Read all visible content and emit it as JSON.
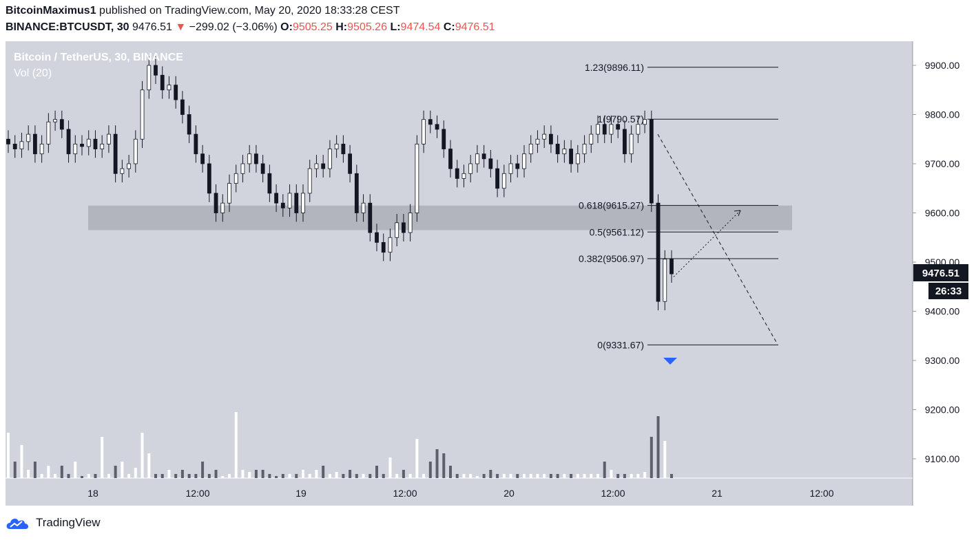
{
  "header": {
    "author": "BitcoinMaximus1",
    "published": "published on TradingView.com, May 20, 2020 18:33:28 CEST",
    "symbol": "BINANCE:BTCUSDT, 30",
    "last": "9476.51",
    "change": "−299.02 (−3.06%)",
    "o_label": "O:",
    "o": "9505.25",
    "h_label": "H:",
    "h": "9505.26",
    "l_label": "L:",
    "l": "9474.54",
    "c_label": "C:",
    "c": "9476.51"
  },
  "legend": {
    "title": "Bitcoin / TetherUS, 30, BINANCE",
    "volume": "Vol (20)"
  },
  "price_tag": "9476.51",
  "countdown": "26:33",
  "footer": {
    "brand": "TradingView"
  },
  "colors": {
    "plot_bg": "#d1d4dc",
    "zone": "#b2b5be",
    "up_body": "#ffffff",
    "down_body": "#131722",
    "price_tag": "#131722",
    "marker": "#2962ff"
  },
  "chart_data": {
    "type": "candlestick",
    "title": "Bitcoin / TetherUS, 30, BINANCE",
    "ylim": [
      9050,
      9940
    ],
    "yticks": [
      "9900.00",
      "9800.00",
      "9700.00",
      "9600.00",
      "9500.00",
      "9400.00",
      "9300.00",
      "9200.00",
      "9100.00"
    ],
    "xticks": [
      "18",
      "12:00",
      "19",
      "12:00",
      "20",
      "12:00",
      "21",
      "12:00"
    ],
    "fibonacci": [
      {
        "label": "1.23(9896.11)",
        "value": 9896.11
      },
      {
        "label": "1(9790.57)",
        "value": 9790.57
      },
      {
        "label": "0.618(9615.27)",
        "value": 9615.27
      },
      {
        "label": "0.5(9561.12)",
        "value": 9561.12
      },
      {
        "label": "0.382(9506.97)",
        "value": 9506.97
      },
      {
        "label": "0(9331.67)",
        "value": 9331.67
      }
    ],
    "support_zone": [
      9565,
      9615
    ],
    "close_path": [
      9740,
      9730,
      9745,
      9760,
      9720,
      9740,
      9785,
      9790,
      9770,
      9720,
      9740,
      9735,
      9750,
      9730,
      9740,
      9760,
      9680,
      9690,
      9700,
      9750,
      9850,
      9900,
      9880,
      9850,
      9860,
      9830,
      9800,
      9760,
      9720,
      9700,
      9640,
      9600,
      9620,
      9660,
      9680,
      9700,
      9720,
      9700,
      9680,
      9640,
      9620,
      9610,
      9640,
      9600,
      9640,
      9690,
      9700,
      9690,
      9730,
      9740,
      9720,
      9680,
      9600,
      9620,
      9560,
      9540,
      9520,
      9550,
      9580,
      9560,
      9600,
      9740,
      9790,
      9780,
      9770,
      9730,
      9690,
      9670,
      9680,
      9700,
      9720,
      9710,
      9690,
      9650,
      9680,
      9700,
      9690,
      9720,
      9740,
      9750,
      9760,
      9740,
      9720,
      9730,
      9700,
      9720,
      9740,
      9760,
      9780,
      9760,
      9780,
      9770,
      9720,
      9760,
      9780,
      9790,
      9620,
      9420,
      9506,
      9476
    ],
    "volume_path": [
      110,
      40,
      80,
      20,
      40,
      10,
      30,
      10,
      30,
      10,
      40,
      5,
      10,
      10,
      100,
      10,
      30,
      40,
      10,
      25,
      110,
      60,
      10,
      10,
      20,
      10,
      20,
      10,
      10,
      40,
      10,
      20,
      5,
      10,
      160,
      20,
      15,
      20,
      20,
      10,
      5,
      10,
      10,
      10,
      20,
      10,
      20,
      30,
      10,
      15,
      10,
      20,
      10,
      10,
      10,
      30,
      10,
      50,
      10,
      20,
      10,
      95,
      10,
      40,
      70,
      60,
      30,
      10,
      10,
      10,
      5,
      10,
      20,
      10,
      10,
      10,
      10,
      10,
      10,
      10,
      10,
      10,
      10,
      10,
      10,
      10,
      10,
      10,
      10,
      40,
      20,
      10,
      10,
      10,
      10,
      15,
      100,
      150,
      90,
      10
    ],
    "current_price": 9476.51
  }
}
